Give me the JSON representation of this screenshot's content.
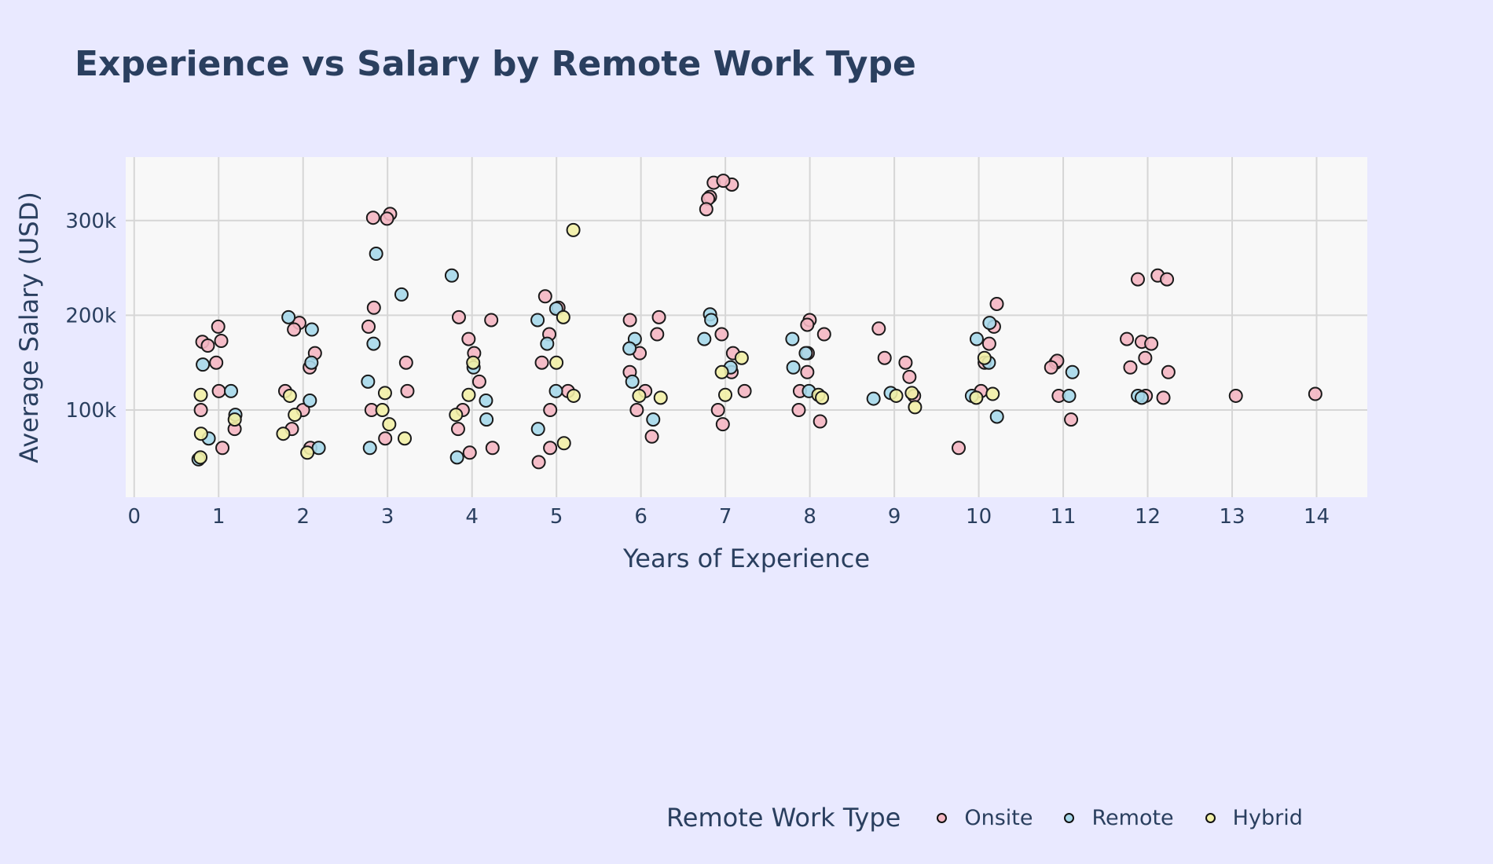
{
  "chart_data": {
    "type": "scatter",
    "title": "Experience vs Salary by Remote Work Type",
    "xlabel": "Years of Experience",
    "ylabel": "Average Salary (USD)",
    "xlim": [
      -0.1,
      14.6
    ],
    "ylim": [
      8000,
      367000
    ],
    "x_ticks": [
      "0",
      "1",
      "2",
      "3",
      "4",
      "5",
      "6",
      "7",
      "8",
      "9",
      "10",
      "11",
      "12",
      "13",
      "14"
    ],
    "y_ticks": [
      {
        "value": 100000,
        "label": "100k"
      },
      {
        "value": 200000,
        "label": "200k"
      },
      {
        "value": 300000,
        "label": "300k"
      }
    ],
    "grid": true,
    "legend_title": "Remote Work Type",
    "legend_position": "bottom-right",
    "series": [
      {
        "name": "Onsite",
        "color": "#f4b6c2",
        "x": [
          1,
          1,
          1,
          1,
          1,
          1,
          1,
          1,
          1,
          2,
          2,
          2,
          2,
          2,
          2,
          2,
          2,
          3,
          3,
          3,
          3,
          3,
          3,
          3,
          3,
          3,
          4,
          4,
          4,
          4,
          4,
          4,
          4,
          4,
          4,
          5,
          5,
          5,
          5,
          5,
          5,
          5,
          5,
          6,
          6,
          6,
          6,
          6,
          6,
          6,
          6,
          7,
          7,
          7,
          7,
          7,
          7,
          7,
          7,
          7,
          7,
          7,
          7,
          8,
          8,
          8,
          8,
          8,
          8,
          8,
          8,
          9,
          9,
          9,
          9,
          9,
          10,
          10,
          10,
          10,
          10,
          10,
          11,
          11,
          11,
          11,
          11,
          12,
          12,
          12,
          12,
          12,
          12,
          12,
          12,
          12,
          12,
          12,
          13,
          14
        ],
        "y": [
          188000,
          173000,
          172000,
          168000,
          150000,
          120000,
          100000,
          80000,
          60000,
          192000,
          185000,
          160000,
          145000,
          120000,
          100000,
          80000,
          60000,
          303000,
          307000,
          302000,
          208000,
          188000,
          150000,
          120000,
          100000,
          70000,
          195000,
          198000,
          175000,
          160000,
          130000,
          100000,
          80000,
          60000,
          55000,
          220000,
          208000,
          180000,
          150000,
          120000,
          100000,
          60000,
          45000,
          198000,
          195000,
          180000,
          160000,
          140000,
          120000,
          100000,
          72000,
          338000,
          325000,
          340000,
          342000,
          323000,
          312000,
          180000,
          160000,
          140000,
          120000,
          100000,
          85000,
          195000,
          190000,
          180000,
          160000,
          140000,
          120000,
          100000,
          88000,
          186000,
          155000,
          150000,
          135000,
          115000,
          212000,
          188000,
          170000,
          150000,
          120000,
          60000,
          150000,
          152000,
          145000,
          115000,
          90000,
          242000,
          238000,
          238000,
          175000,
          172000,
          170000,
          155000,
          145000,
          140000,
          115000,
          113000,
          115000,
          117000
        ]
      },
      {
        "name": "Remote",
        "color": "#a6d8ea",
        "x": [
          1,
          1,
          1,
          1,
          1,
          2,
          2,
          2,
          2,
          2,
          3,
          3,
          3,
          3,
          3,
          4,
          4,
          4,
          4,
          4,
          5,
          5,
          5,
          5,
          5,
          6,
          6,
          6,
          6,
          7,
          7,
          7,
          7,
          8,
          8,
          8,
          8,
          9,
          9,
          10,
          10,
          10,
          10,
          10,
          11,
          11,
          12,
          12
        ],
        "y": [
          148000,
          120000,
          95000,
          70000,
          48000,
          198000,
          185000,
          150000,
          110000,
          60000,
          265000,
          222000,
          170000,
          130000,
          60000,
          242000,
          145000,
          110000,
          90000,
          50000,
          207000,
          195000,
          170000,
          120000,
          80000,
          175000,
          165000,
          130000,
          90000,
          201000,
          195000,
          175000,
          145000,
          175000,
          160000,
          145000,
          120000,
          118000,
          112000,
          192000,
          175000,
          150000,
          115000,
          93000,
          140000,
          115000,
          115000,
          113000
        ]
      },
      {
        "name": "Hybrid",
        "color": "#f2f0a6",
        "x": [
          1,
          1,
          1,
          1,
          2,
          2,
          2,
          2,
          3,
          3,
          3,
          3,
          4,
          4,
          4,
          5,
          5,
          5,
          5,
          5,
          6,
          6,
          7,
          7,
          7,
          8,
          8,
          9,
          9,
          9,
          10,
          10,
          10
        ],
        "y": [
          116000,
          90000,
          75000,
          50000,
          115000,
          95000,
          75000,
          55000,
          118000,
          100000,
          85000,
          70000,
          150000,
          116000,
          95000,
          290000,
          198000,
          150000,
          115000,
          65000,
          115000,
          113000,
          155000,
          140000,
          116000,
          116000,
          113000,
          118000,
          115000,
          103000,
          155000,
          117000,
          113000
        ]
      }
    ]
  }
}
